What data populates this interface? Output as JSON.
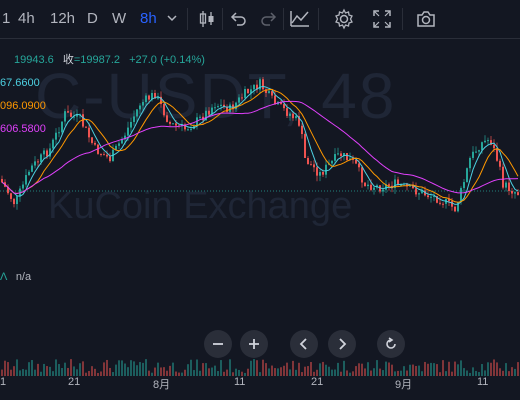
{
  "toolbar": {
    "intervals": [
      "4h",
      "12h",
      "D",
      "W",
      "8h"
    ],
    "interval_partial": "1",
    "active_interval": "8h"
  },
  "legend": {
    "ohlc": "19943.6",
    "close_label": "收",
    "close": "=19987.2",
    "change": "+27.0 (+0.14%)",
    "ma1": "67.6600",
    "ma2": "096.0900",
    "ma3": "606.5800",
    "volume_indicator": "n/a"
  },
  "watermark": {
    "symbol": "C-USDT, 48",
    "exchange": "KuCoin Exchange"
  },
  "xaxis": {
    "labels": [
      "1",
      "21",
      "8月",
      "11",
      "21",
      "9月",
      "11"
    ]
  },
  "colors": {
    "up": "#26a69a",
    "down": "#ef5350",
    "ma1": "#4dd0e1",
    "ma2": "#ff9800",
    "ma3": "#e040fb",
    "active": "#2962ff"
  }
}
